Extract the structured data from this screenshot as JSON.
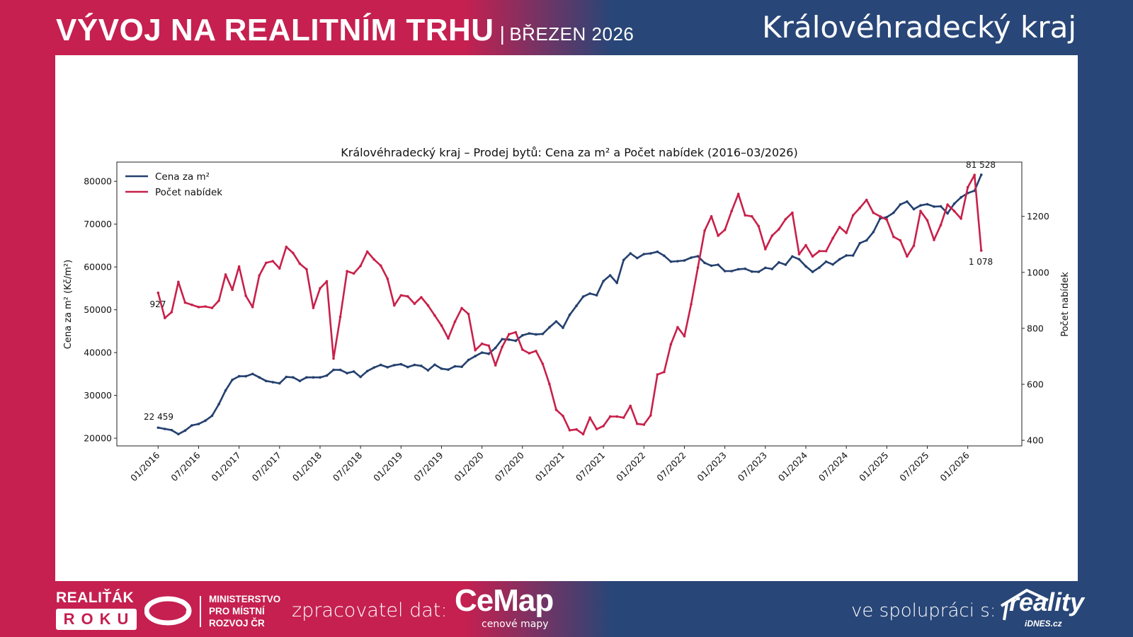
{
  "header": {
    "title": "VÝVOJ NA REALITNÍM TRHU",
    "separator": "|",
    "period": "BŘEZEN 2026",
    "region": "Královéhradecký kraj"
  },
  "footer": {
    "realitak_top": "REALIŤÁK",
    "realitak_bottom": "ROKU",
    "ministry_lines": [
      "MINISTERSTVO",
      "PRO MÍSTNÍ",
      "ROZVOJ ČR"
    ],
    "processor_label": "zpracovatel dat:",
    "cemap_logo": "CeMap",
    "cemap_sub": "cenové mapy",
    "cooperation_label": "ve spolupráci s:",
    "reality_logo": "reality",
    "reality_sub": "iDNES.cz"
  },
  "colors": {
    "brand_red": "#c52050",
    "brand_blue": "#284677",
    "price_line": "#24406e",
    "offers_line": "#c8204a"
  },
  "chart_data": {
    "type": "line",
    "title": "Královéhradecký kraj – Prodej bytů: Cena za m² a Počet nabídek (2016–03/2026)",
    "xlabel": "",
    "ylabel_left": "Cena za m² (Kč/m²)",
    "ylabel_right": "Počet nabídek",
    "x_start": "01/2016",
    "x_end": "03/2026",
    "x_step": "1 month",
    "x_ticks": [
      "01/2016",
      "07/2016",
      "01/2017",
      "07/2017",
      "01/2018",
      "07/2018",
      "01/2019",
      "07/2019",
      "01/2020",
      "07/2020",
      "01/2021",
      "07/2021",
      "01/2022",
      "07/2022",
      "01/2023",
      "07/2023",
      "01/2024",
      "07/2024",
      "01/2025",
      "07/2025",
      "01/2026"
    ],
    "ylim_left": [
      18200,
      84500
    ],
    "yticks_left": [
      "20000",
      "30000",
      "40000",
      "50000",
      "60000",
      "70000",
      "80000"
    ],
    "ylim_right": [
      380,
      1394
    ],
    "yticks_right": [
      "400",
      "600",
      "800",
      "1000",
      "1200"
    ],
    "grid": false,
    "legend": "top-left",
    "series": [
      {
        "name": "Cena za m²",
        "axis": "left",
        "color": "#24406e",
        "values": [
          22459,
          22160,
          21890,
          20950,
          21780,
          22990,
          23320,
          24100,
          25250,
          27960,
          31160,
          33640,
          34470,
          34470,
          35020,
          34200,
          33370,
          33090,
          32820,
          34310,
          34200,
          33370,
          34200,
          34200,
          34200,
          34640,
          35960,
          35960,
          35190,
          35570,
          34310,
          35680,
          36510,
          37120,
          36570,
          37060,
          37280,
          36620,
          37120,
          36900,
          35850,
          37170,
          36240,
          36020,
          36790,
          36680,
          38280,
          39160,
          40000,
          39720,
          41100,
          43140,
          43030,
          42760,
          44030,
          44470,
          44250,
          44360,
          45900,
          47280,
          45790,
          48820,
          50920,
          53070,
          53790,
          53400,
          56710,
          58040,
          56270,
          61630,
          63170,
          62070,
          63000,
          63170,
          63560,
          62620,
          61240,
          61350,
          61510,
          62180,
          62510,
          60960,
          60300,
          60520,
          59030,
          59030,
          59470,
          59580,
          58920,
          58860,
          59800,
          59530,
          61080,
          60520,
          62460,
          61800,
          60140,
          58860,
          59860,
          61240,
          60580,
          61800,
          62680,
          62680,
          65550,
          66210,
          68150,
          71290,
          71630,
          72670,
          74600,
          75270,
          73500,
          74380,
          74660,
          74100,
          74160,
          72510,
          74770,
          76260,
          77250,
          77800,
          81528
        ]
      },
      {
        "name": "Počet nabídek",
        "axis": "right",
        "color": "#c8204a",
        "values": [
          927,
          837,
          858,
          966,
          892,
          884,
          876,
          878,
          873,
          899,
          992,
          938,
          1021,
          916,
          876,
          989,
          1034,
          1040,
          1014,
          1091,
          1069,
          1031,
          1011,
          873,
          943,
          968,
          692,
          841,
          1004,
          996,
          1023,
          1074,
          1046,
          1024,
          977,
          882,
          918,
          914,
          888,
          911,
          882,
          846,
          810,
          764,
          824,
          872,
          851,
          722,
          745,
          738,
          668,
          734,
          779,
          786,
          724,
          711,
          719,
          673,
          601,
          509,
          487,
          436,
          439,
          422,
          481,
          440,
          451,
          485,
          485,
          481,
          523,
          459,
          456,
          489,
          635,
          644,
          743,
          804,
          772,
          886,
          1017,
          1149,
          1200,
          1131,
          1152,
          1219,
          1280,
          1204,
          1200,
          1165,
          1083,
          1131,
          1154,
          1190,
          1213,
          1065,
          1097,
          1057,
          1076,
          1076,
          1122,
          1162,
          1141,
          1204,
          1230,
          1259,
          1213,
          1200,
          1188,
          1127,
          1114,
          1057,
          1095,
          1219,
          1186,
          1116,
          1169,
          1242,
          1219,
          1192,
          1304,
          1348,
          1078
        ]
      }
    ],
    "annotations": [
      "22 459",
      "927",
      "81 528",
      "1 078"
    ]
  }
}
